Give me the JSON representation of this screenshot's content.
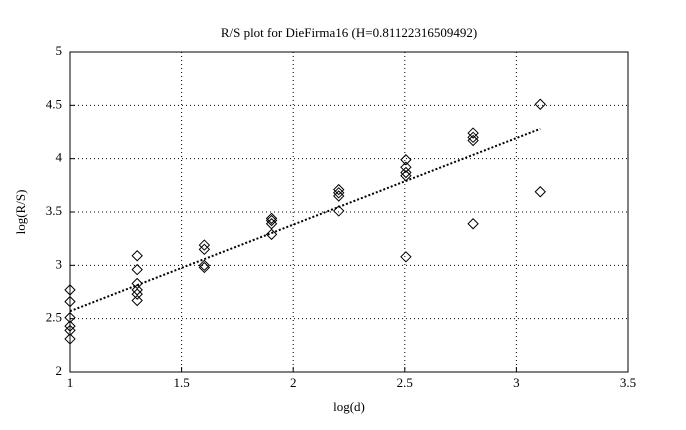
{
  "chart_data": {
    "type": "scatter",
    "title": "R/S plot for DieFirma16 (H=0.81122316509492)",
    "xlabel": "log(d)",
    "ylabel": "log(R/S)",
    "xlim": [
      1,
      3.5
    ],
    "xticks": [
      1,
      1.5,
      2,
      2.5,
      3,
      3.5
    ],
    "ylim": [
      2,
      5
    ],
    "yticks": [
      2,
      2.5,
      3,
      3.5,
      4,
      4.5,
      5
    ],
    "grid": true,
    "series": [
      {
        "marker": "diamond",
        "color": "#000000",
        "x": [
          1,
          1,
          1,
          1,
          1,
          1,
          1.301,
          1.301,
          1.301,
          1.301,
          1.301,
          1.301,
          1.602,
          1.602,
          1.602,
          1.602,
          1.903,
          1.903,
          1.903,
          1.903,
          2.204,
          2.204,
          2.204,
          2.204,
          2.505,
          2.505,
          2.505,
          2.505,
          2.505,
          2.806,
          2.806,
          2.806,
          2.806,
          3.107,
          3.107
        ],
        "values": [
          2.77,
          2.66,
          2.51,
          2.43,
          2.39,
          2.31,
          3.09,
          2.96,
          2.83,
          2.77,
          2.73,
          2.67,
          3.19,
          3.15,
          3.0,
          2.98,
          3.44,
          3.42,
          3.39,
          3.29,
          3.71,
          3.68,
          3.65,
          3.51,
          3.99,
          3.92,
          3.87,
          3.84,
          3.08,
          4.24,
          4.2,
          4.17,
          3.39,
          4.51,
          3.69
        ]
      },
      {
        "marker": "none",
        "line": "dotted",
        "color": "#000000",
        "x": [
          1,
          3.107
        ],
        "values": [
          2.57,
          4.28
        ]
      }
    ]
  }
}
